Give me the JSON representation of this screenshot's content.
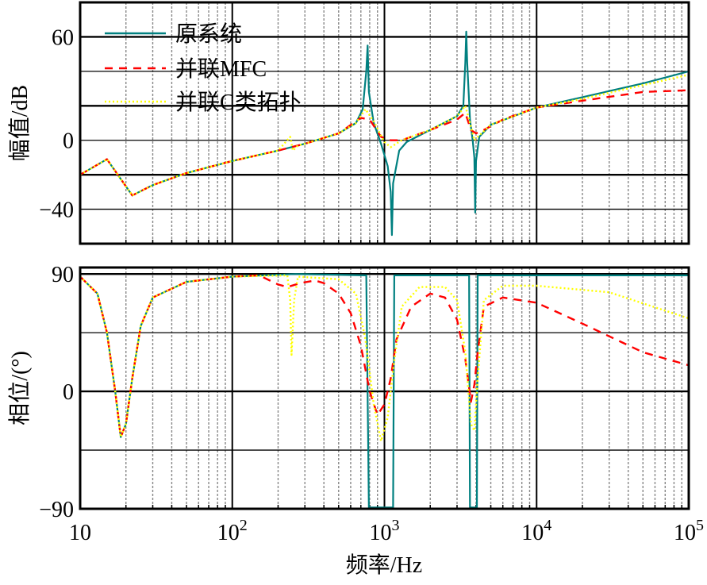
{
  "chart_data": [
    {
      "type": "line",
      "panel": "magnitude",
      "title": "",
      "xlabel": "",
      "ylabel": "幅值/dB",
      "xscale": "log",
      "xlim": [
        10,
        100000
      ],
      "ylim": [
        -60,
        80
      ],
      "yticks": [
        -40,
        0,
        60
      ],
      "ytick_labels": [
        "−40",
        "0",
        "60"
      ],
      "ygrid": [
        -40,
        -20,
        0,
        20,
        40,
        60
      ],
      "grid": true,
      "legend_position": "upper-left",
      "series": [
        {
          "name": "原系统",
          "color": "#008080",
          "style": "solid",
          "x": [
            10,
            15,
            22,
            30,
            50,
            100,
            200,
            300,
            500,
            650,
            720,
            760,
            775,
            790,
            850,
            950,
            1050,
            1100,
            1120,
            1140,
            1250,
            1400,
            2000,
            3000,
            3300,
            3400,
            3450,
            3500,
            3650,
            3800,
            3900,
            3950,
            4000,
            4200,
            5000,
            10000,
            20000,
            50000,
            100000
          ],
          "y": [
            -20,
            -11,
            -32,
            -26,
            -19,
            -12,
            -6,
            -2,
            4,
            10,
            18,
            40,
            55,
            28,
            10,
            -2,
            -15,
            -30,
            -55,
            -25,
            -6,
            -1,
            6,
            14,
            20,
            45,
            63,
            45,
            12,
            0,
            -10,
            -42,
            -12,
            2,
            9,
            19,
            25,
            33,
            40
          ]
        },
        {
          "name": "并联MFC",
          "color": "#ff0000",
          "style": "dashed",
          "x": [
            10,
            15,
            22,
            30,
            50,
            100,
            200,
            300,
            500,
            700,
            800,
            950,
            1100,
            1300,
            2000,
            3000,
            3400,
            3700,
            4000,
            4500,
            6000,
            10000,
            20000,
            50000,
            100000
          ],
          "y": [
            -20,
            -11,
            -32,
            -26,
            -19,
            -12,
            -6,
            -2,
            4,
            13,
            12,
            2,
            0,
            0,
            6,
            12,
            16,
            6,
            4,
            6,
            12,
            19,
            23,
            28,
            29
          ]
        },
        {
          "name": "并联C类拓扑",
          "color": "#ffff00",
          "style": "dotted",
          "x": [
            10,
            15,
            22,
            30,
            50,
            100,
            200,
            240,
            250,
            270,
            300,
            500,
            650,
            750,
            850,
            1000,
            1100,
            1300,
            2000,
            3000,
            3400,
            3700,
            3900,
            4100,
            5000,
            10000,
            20000,
            50000,
            100000
          ],
          "y": [
            -20,
            -11,
            -32,
            -26,
            -19,
            -12,
            -6,
            2,
            -6,
            -3,
            -2,
            4,
            10,
            18,
            11,
            -1,
            -4,
            0,
            6,
            14,
            20,
            8,
            0,
            2,
            9,
            19,
            24,
            32,
            38
          ]
        }
      ]
    },
    {
      "type": "line",
      "panel": "phase",
      "title": "",
      "xlabel": "频率/Hz",
      "ylabel": "相位/(°)",
      "xscale": "log",
      "xlim": [
        10,
        100000
      ],
      "ylim": [
        -90,
        95
      ],
      "xticks": [
        10,
        100,
        1000,
        10000,
        100000
      ],
      "xtick_labels": [
        "10",
        "10^2",
        "10^3",
        "10^4",
        "10^5"
      ],
      "yticks": [
        -90,
        0,
        90
      ],
      "ytick_labels": [
        "−90",
        "0",
        "90"
      ],
      "ygrid": [
        -90,
        -45,
        0,
        45,
        90
      ],
      "grid": true,
      "series": [
        {
          "name": "原系统",
          "color": "#008080",
          "style": "solid",
          "x": [
            10,
            13,
            15,
            17,
            18.5,
            20,
            22,
            25,
            30,
            50,
            100,
            260,
            760,
            790,
            1140,
            1160,
            3600,
            3650,
            4050,
            4100,
            100000
          ],
          "y": [
            88,
            75,
            45,
            0,
            -35,
            -25,
            10,
            50,
            72,
            84,
            88,
            90,
            89,
            -89,
            -89,
            89,
            89,
            -89,
            -89,
            89,
            89
          ]
        },
        {
          "name": "并联MFC",
          "color": "#ff0000",
          "style": "dashed",
          "x": [
            10,
            13,
            15,
            17,
            18.5,
            20,
            22,
            25,
            30,
            50,
            100,
            150,
            200,
            230,
            280,
            350,
            400,
            500,
            600,
            700,
            800,
            900,
            1000,
            1100,
            1200,
            1500,
            2000,
            2500,
            3000,
            3400,
            3700,
            3900,
            4100,
            4500,
            6000,
            10000,
            20000,
            50000,
            100000
          ],
          "y": [
            88,
            75,
            45,
            0,
            -35,
            -25,
            10,
            50,
            72,
            84,
            88,
            89,
            82,
            80,
            83,
            85,
            83,
            75,
            60,
            35,
            0,
            -18,
            -10,
            10,
            40,
            65,
            75,
            72,
            55,
            25,
            -8,
            5,
            30,
            65,
            72,
            68,
            52,
            30,
            20
          ]
        },
        {
          "name": "并联C类拓扑",
          "color": "#ffff00",
          "style": "dotted",
          "x": [
            10,
            13,
            15,
            17,
            18.5,
            20,
            22,
            25,
            30,
            50,
            100,
            230,
            240,
            245,
            255,
            270,
            500,
            650,
            750,
            850,
            950,
            1050,
            1150,
            1300,
            1700,
            2500,
            3000,
            3400,
            3700,
            3900,
            4100,
            4500,
            6000,
            10000,
            30000,
            100000
          ],
          "y": [
            88,
            75,
            45,
            0,
            -35,
            -25,
            10,
            50,
            72,
            84,
            88,
            89,
            70,
            28,
            70,
            88,
            86,
            75,
            40,
            -10,
            -38,
            -20,
            20,
            65,
            80,
            80,
            70,
            30,
            -25,
            -30,
            10,
            70,
            81,
            81,
            76,
            56
          ]
        }
      ]
    }
  ],
  "labels": {
    "magnitude_ylabel": "幅值/dB",
    "phase_ylabel": "相位/(°)",
    "xlabel": "频率/Hz",
    "legend": [
      "原系统",
      "并联MFC",
      "并联C类拓扑"
    ]
  }
}
